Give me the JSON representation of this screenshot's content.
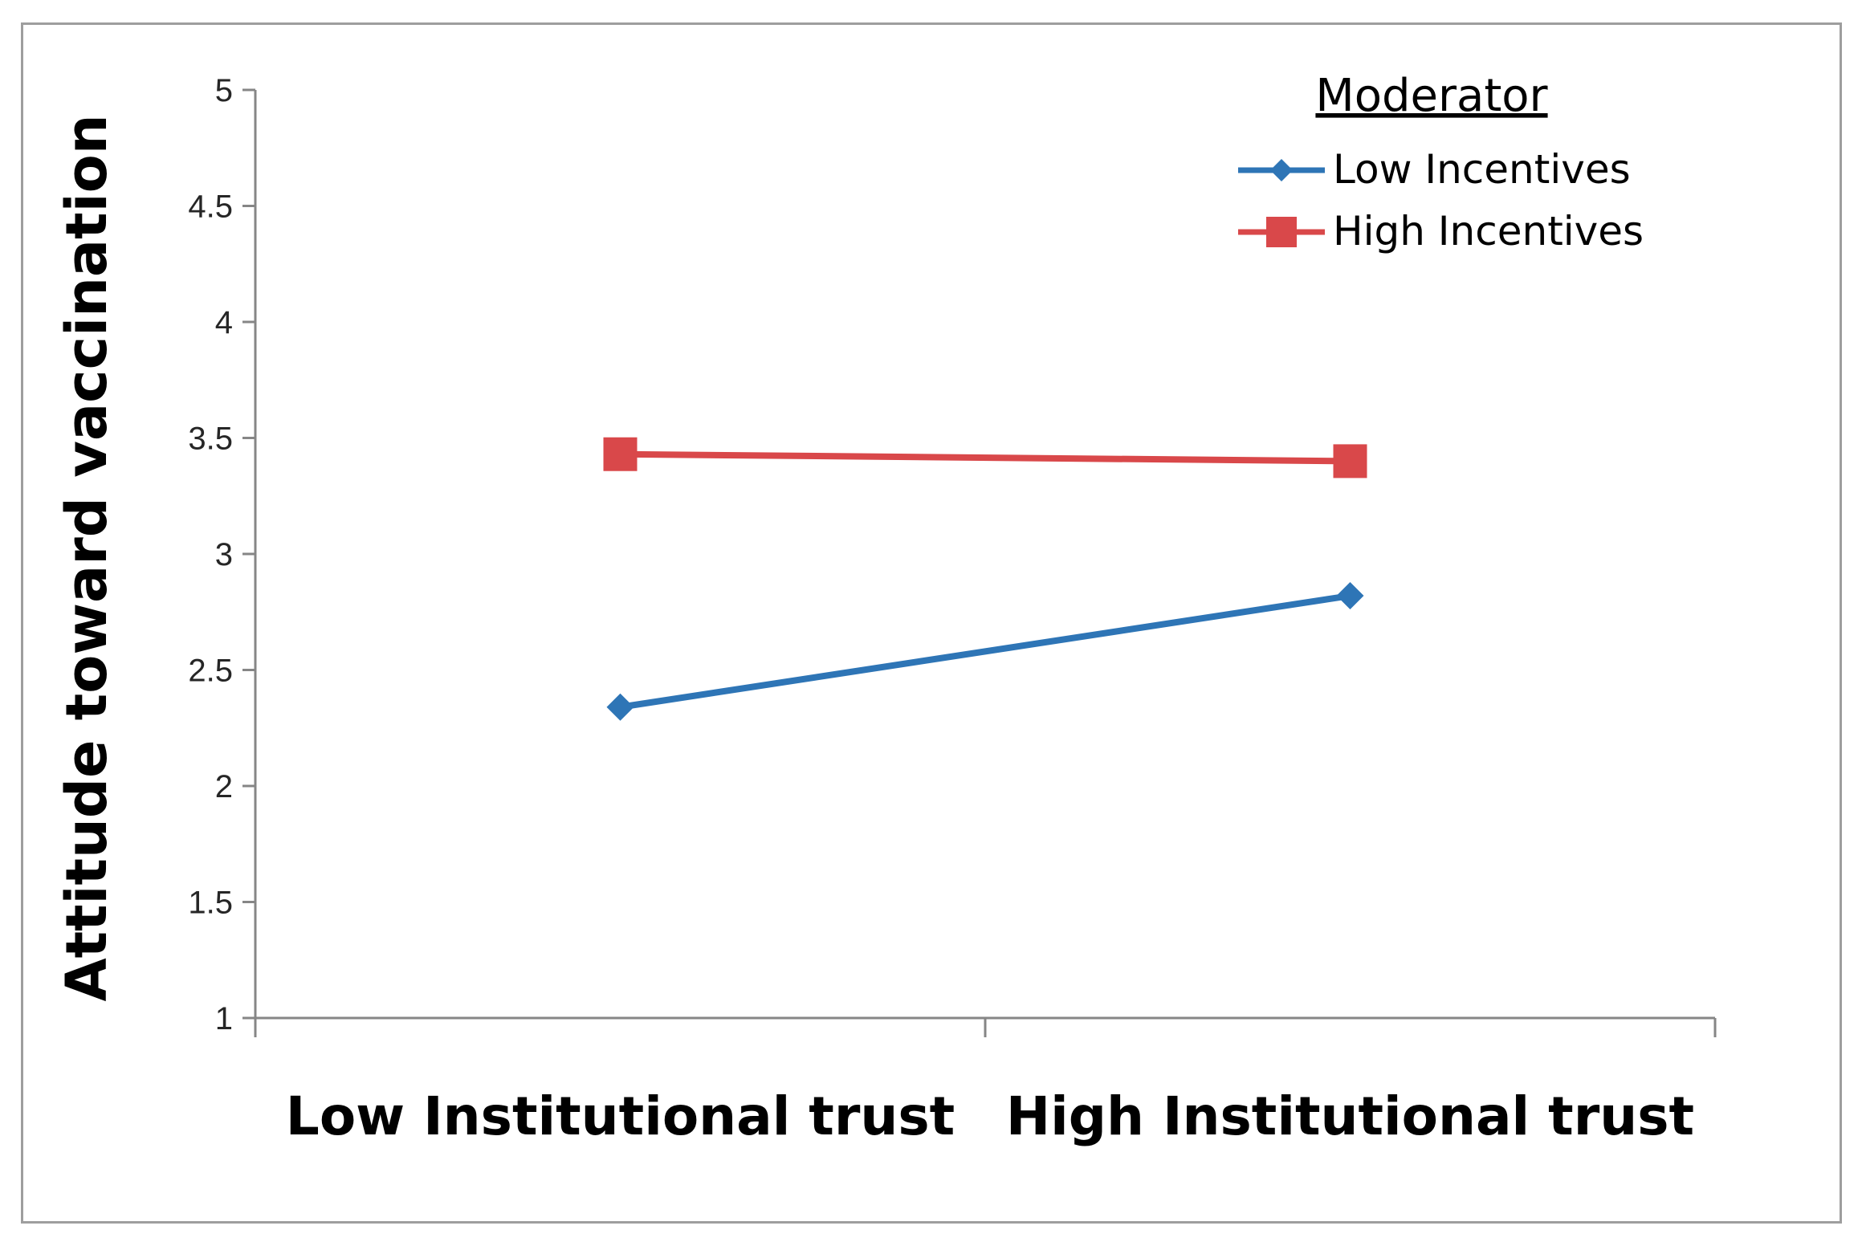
{
  "chart_data": {
    "type": "line",
    "categories": [
      "Low Institutional trust",
      "High Institutional trust"
    ],
    "ylabel": "Attitude toward vaccination",
    "xlabel": "",
    "ylim": [
      1,
      5
    ],
    "yticks": [
      "1",
      "1.5",
      "2",
      "2.5",
      "3",
      "3.5",
      "4",
      "4.5",
      "5"
    ],
    "grid": false,
    "legend": {
      "title": "Moderator",
      "placement": "top-right"
    },
    "series": [
      {
        "name": "Low Incentives",
        "values": [
          2.34,
          2.82
        ],
        "color": "#2e75b6",
        "marker": "diamond"
      },
      {
        "name": "High Incentives",
        "values": [
          3.43,
          3.4
        ],
        "color": "#d9484a",
        "marker": "square"
      }
    ]
  }
}
